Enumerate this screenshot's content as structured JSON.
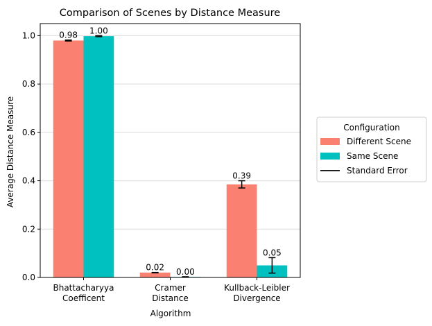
{
  "chart_data": {
    "type": "bar",
    "title": "Comparison of Scenes by Distance Measure",
    "xlabel": "Algorithm",
    "ylabel": "Average Distance Measure",
    "categories": [
      [
        "Bhattacharyya",
        "Coefficent"
      ],
      [
        "Cramer",
        "Distance"
      ],
      [
        "Kullback-Leibler",
        "Divergence"
      ]
    ],
    "series": [
      {
        "name": "Different Scene",
        "color": "#fa8072",
        "values": [
          0.98,
          0.02,
          0.385
        ],
        "errors": [
          0.002,
          0.001,
          0.015
        ],
        "labels": [
          "0.98",
          "0.02",
          "0.39"
        ]
      },
      {
        "name": "Same Scene",
        "color": "#00c0c0",
        "values": [
          0.998,
          0.002,
          0.05
        ],
        "errors": [
          0.002,
          0.001,
          0.032
        ],
        "labels": [
          "1.00",
          "0.00",
          "0.05"
        ]
      }
    ],
    "ylim": [
      0,
      1.05
    ],
    "yticks": [
      0.0,
      0.2,
      0.4,
      0.6,
      0.8,
      1.0
    ],
    "ytick_labels": [
      "0.0",
      "0.2",
      "0.4",
      "0.6",
      "0.8",
      "1.0"
    ],
    "grid": "horizontal",
    "legend": {
      "title": "Configuration",
      "placement": "right",
      "entries": [
        {
          "label": "Different Scene",
          "kind": "patch",
          "color": "#fa8072"
        },
        {
          "label": "Same Scene",
          "kind": "patch",
          "color": "#00c0c0"
        },
        {
          "label": "Standard Error",
          "kind": "line",
          "color": "#000000"
        }
      ]
    }
  }
}
